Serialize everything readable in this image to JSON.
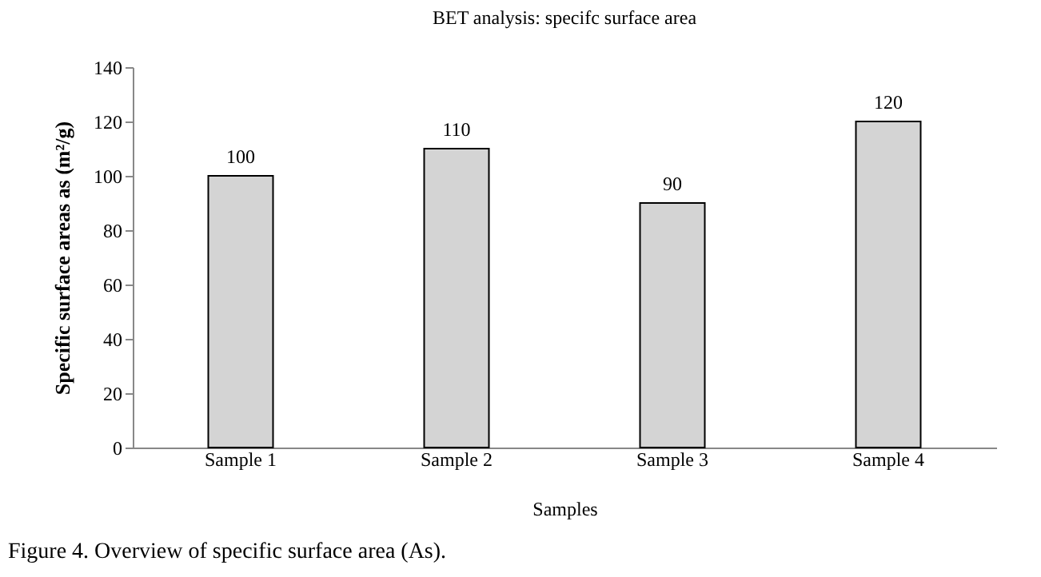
{
  "chart_data": {
    "type": "bar",
    "title": "BET analysis: specifc surface area",
    "xlabel": "Samples",
    "ylabel": "Specific surface areas as (m²/g)",
    "categories": [
      "Sample 1",
      "Sample 2",
      "Sample 3",
      "Sample 4"
    ],
    "values": [
      100,
      110,
      90,
      120
    ],
    "color": "#d4d4d4",
    "ylim": [
      0,
      140
    ],
    "yticks": [
      0,
      20,
      40,
      60,
      80,
      100,
      120,
      140
    ],
    "grid": false,
    "data_labels": true,
    "annotations": [
      "Figure 4. Overview of specific surface area (As)."
    ]
  }
}
